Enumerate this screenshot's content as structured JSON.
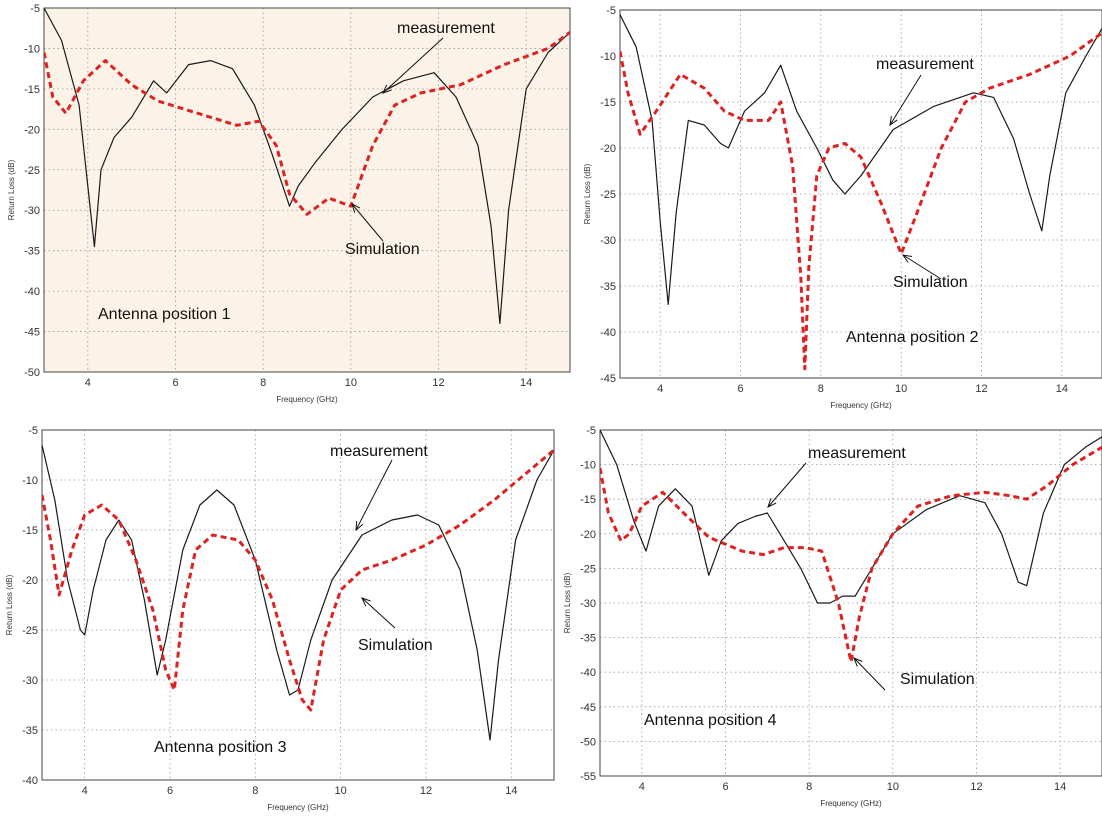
{
  "colors": {
    "measurement": "#1a1a1a",
    "simulation": "#dd2222",
    "panel_1_background": "#fcf3e8",
    "panel_background": "#ffffff",
    "grid": "#9a9a9a"
  },
  "chart_data": [
    {
      "type": "line",
      "xlabel": "Frequency (GHz)",
      "ylabel": "Return Loss (dB)",
      "xlim": [
        3,
        15
      ],
      "ylim": [
        -50,
        -5
      ],
      "xticks": [
        "4",
        "6",
        "8",
        "10",
        "12",
        "14"
      ],
      "yticks": [
        "-5",
        "-10",
        "-15",
        "-20",
        "-25",
        "-30",
        "-35",
        "-40",
        "-45",
        "-50"
      ],
      "grid": true,
      "annotations": {
        "measurement": "measurement",
        "simulation": "Simulation",
        "position": "Antenna position 1"
      },
      "series": [
        {
          "x": [
            3,
            3.4,
            3.8,
            4.0,
            4.15,
            4.3,
            4.6,
            5.0,
            5.5,
            5.8,
            6.3,
            6.8,
            7.3,
            7.8,
            8.2,
            8.6,
            8.8,
            9.2,
            9.8,
            10.5,
            11.2,
            11.9,
            12.4,
            12.9,
            13.2,
            13.4,
            13.6,
            14.0,
            14.5,
            15
          ],
          "y": [
            -5,
            -9,
            -17,
            -27,
            -34.5,
            -25,
            -21,
            -18.5,
            -14,
            -15.5,
            -12,
            -11.5,
            -12.5,
            -17,
            -23,
            -29.5,
            -27,
            -24,
            -20,
            -16,
            -14,
            -13,
            -16,
            -22,
            -32,
            -44,
            -30,
            -15,
            -10.5,
            -8
          ]
        },
        {
          "x": [
            3,
            3.2,
            3.5,
            3.9,
            4.4,
            5.0,
            5.6,
            6.5,
            7.4,
            7.9,
            8.3,
            8.6,
            9.0,
            9.5,
            10.0,
            10.5,
            11.0,
            11.6,
            12.5,
            13.5,
            14.5,
            15
          ],
          "y": [
            -10.5,
            -16,
            -18,
            -14,
            -11.5,
            -14.5,
            -16.5,
            -18,
            -19.5,
            -19,
            -22,
            -28,
            -30.5,
            -28.5,
            -29.5,
            -22,
            -17,
            -15.5,
            -14.5,
            -12,
            -10,
            -8
          ]
        }
      ]
    },
    {
      "type": "line",
      "xlabel": "Frequency (GHz)",
      "ylabel": "Return Loss (dB)",
      "xlim": [
        3,
        15
      ],
      "ylim": [
        -45,
        -5
      ],
      "xticks": [
        "4",
        "6",
        "8",
        "10",
        "12",
        "14"
      ],
      "yticks": [
        "-5",
        "-10",
        "-15",
        "-20",
        "-25",
        "-30",
        "-35",
        "-40",
        "-45"
      ],
      "grid": true,
      "annotations": {
        "measurement": "measurement",
        "simulation": "Simulation",
        "position": "Antenna position 2"
      },
      "series": [
        {
          "x": [
            3,
            3.4,
            3.8,
            4.0,
            4.2,
            4.4,
            4.7,
            5.1,
            5.5,
            5.7,
            6.1,
            6.6,
            7.0,
            7.4,
            7.9,
            8.3,
            8.6,
            9.0,
            9.8,
            10.8,
            11.8,
            12.3,
            12.8,
            13.2,
            13.5,
            13.7,
            14.1,
            14.6,
            15
          ],
          "y": [
            -5.5,
            -9,
            -17,
            -28,
            -37,
            -27,
            -17,
            -17.5,
            -19.5,
            -20,
            -16,
            -14,
            -11,
            -16,
            -20,
            -23.5,
            -25,
            -23,
            -18,
            -15.5,
            -14,
            -14.5,
            -19,
            -25,
            -29,
            -23,
            -14,
            -10,
            -7
          ]
        },
        {
          "x": [
            3,
            3.2,
            3.5,
            3.9,
            4.5,
            5.1,
            5.6,
            6.1,
            6.7,
            7.0,
            7.3,
            7.5,
            7.6,
            7.7,
            7.9,
            8.2,
            8.6,
            9.0,
            9.5,
            10.0,
            10.4,
            11.0,
            11.6,
            12.2,
            13.2,
            14.2,
            15
          ],
          "y": [
            -9.5,
            -14,
            -18.5,
            -16,
            -12,
            -13.5,
            -16,
            -17,
            -17,
            -15,
            -22,
            -34,
            -44,
            -33,
            -23,
            -20,
            -19.5,
            -21,
            -26,
            -31.5,
            -27,
            -20,
            -15,
            -13.5,
            -12,
            -10,
            -7.5
          ]
        }
      ]
    },
    {
      "type": "line",
      "xlabel": "Frequency (GHz)",
      "ylabel": "Return Loss (dB)",
      "xlim": [
        3,
        15
      ],
      "ylim": [
        -40,
        -5
      ],
      "xticks": [
        "4",
        "6",
        "8",
        "10",
        "12",
        "14"
      ],
      "yticks": [
        "-5",
        "-10",
        "-15",
        "-20",
        "-25",
        "-30",
        "-35",
        "-40"
      ],
      "grid": true,
      "annotations": {
        "measurement": "measurement",
        "simulation": "Simulation",
        "position": "Antenna position 3"
      },
      "series": [
        {
          "x": [
            3,
            3.3,
            3.6,
            3.9,
            4.0,
            4.2,
            4.5,
            4.8,
            5.1,
            5.4,
            5.7,
            5.9,
            6.3,
            6.7,
            7.1,
            7.5,
            8.0,
            8.5,
            8.8,
            9.0,
            9.3,
            9.8,
            10.5,
            11.2,
            11.8,
            12.3,
            12.8,
            13.2,
            13.5,
            13.7,
            14.1,
            14.6,
            15
          ],
          "y": [
            -6.5,
            -12,
            -20,
            -25,
            -25.5,
            -21,
            -16,
            -14,
            -16,
            -22,
            -29.5,
            -26,
            -17,
            -12.5,
            -11,
            -12.5,
            -18,
            -27,
            -31.5,
            -31,
            -26,
            -20,
            -15.5,
            -14,
            -13.5,
            -14.5,
            -19,
            -27,
            -36,
            -28,
            -16,
            -10,
            -7
          ]
        },
        {
          "x": [
            3,
            3.2,
            3.4,
            3.7,
            4.0,
            4.4,
            4.8,
            5.2,
            5.6,
            5.9,
            6.1,
            6.3,
            6.6,
            7.0,
            7.6,
            8.0,
            8.4,
            8.8,
            9.1,
            9.3,
            9.6,
            10.0,
            10.5,
            11.2,
            12.0,
            12.8,
            13.6,
            14.3,
            15
          ],
          "y": [
            -11.5,
            -16,
            -21.5,
            -17,
            -13.5,
            -12.5,
            -14,
            -18,
            -23,
            -29,
            -31,
            -23,
            -17,
            -15.5,
            -16,
            -18,
            -22,
            -28,
            -32,
            -33,
            -26,
            -21,
            -19,
            -18,
            -16.5,
            -14.5,
            -12,
            -9.5,
            -7
          ]
        }
      ]
    },
    {
      "type": "line",
      "xlabel": "Frequency (GHz)",
      "ylabel": "Return Loss (dB)",
      "xlim": [
        3,
        15
      ],
      "ylim": [
        -55,
        -5
      ],
      "xticks": [
        "4",
        "6",
        "8",
        "10",
        "12",
        "14"
      ],
      "yticks": [
        "-5",
        "-10",
        "-15",
        "-20",
        "-25",
        "-30",
        "-35",
        "-40",
        "-45",
        "-50",
        "-55"
      ],
      "grid": true,
      "annotations": {
        "measurement": "measurement",
        "simulation": "Simulation",
        "position": "Antenna position 4"
      },
      "series": [
        {
          "x": [
            3,
            3.4,
            3.8,
            4.1,
            4.4,
            4.8,
            5.2,
            5.6,
            5.9,
            6.3,
            6.7,
            7.0,
            7.4,
            7.8,
            8.2,
            8.5,
            8.8,
            9.1,
            9.4,
            10.0,
            10.8,
            11.6,
            12.2,
            12.6,
            13.0,
            13.2,
            13.6,
            14.1,
            14.6,
            15
          ],
          "y": [
            -5,
            -10,
            -18,
            -22.5,
            -16,
            -13.5,
            -16,
            -26,
            -21,
            -18.5,
            -17.5,
            -17,
            -21,
            -25,
            -30,
            -30,
            -29,
            -29,
            -26,
            -20,
            -16.5,
            -14.5,
            -15.5,
            -20,
            -27,
            -27.5,
            -17,
            -10,
            -7.5,
            -6
          ]
        },
        {
          "x": [
            3,
            3.2,
            3.5,
            3.7,
            4.0,
            4.5,
            5.0,
            5.6,
            6.4,
            6.9,
            7.4,
            7.9,
            8.3,
            8.7,
            9.0,
            9.2,
            9.5,
            10.0,
            10.6,
            11.4,
            12.2,
            12.8,
            13.2,
            13.7,
            14.3,
            15
          ],
          "y": [
            -10.5,
            -17,
            -21,
            -20,
            -16,
            -14,
            -17,
            -20.5,
            -22.5,
            -23,
            -22,
            -22,
            -22.5,
            -30,
            -38.5,
            -32,
            -25,
            -20,
            -16,
            -14.5,
            -14,
            -14.5,
            -15,
            -13,
            -10,
            -7.5
          ]
        }
      ]
    }
  ]
}
